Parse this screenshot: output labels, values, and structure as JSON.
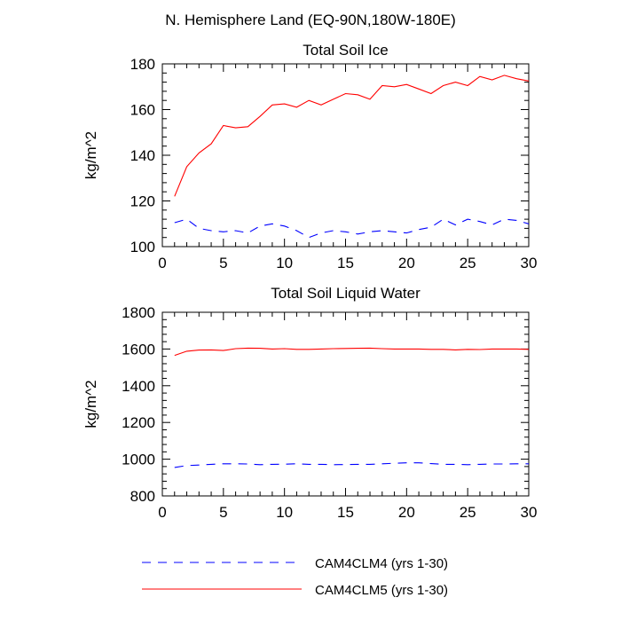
{
  "header": {
    "title": "N. Hemisphere Land (EQ-90N,180W-180E)"
  },
  "legend": [
    {
      "label": "CAM4CLM4 (yrs 1-30)",
      "color": "#0000ff",
      "dash": "dashed"
    },
    {
      "label": "CAM4CLM5 (yrs 1-30)",
      "color": "#ff0000",
      "dash": "solid"
    }
  ],
  "chart_data": [
    {
      "type": "line",
      "title": "Total Soil Ice",
      "xlabel": "",
      "ylabel": "kg/m^2",
      "xlim": [
        0,
        30
      ],
      "ylim": [
        100,
        180
      ],
      "xticks": [
        0,
        5,
        10,
        15,
        20,
        25,
        30
      ],
      "yticks": [
        100,
        120,
        140,
        160,
        180
      ],
      "grid": false,
      "x": [
        1,
        2,
        3,
        4,
        5,
        6,
        7,
        8,
        9,
        10,
        11,
        12,
        13,
        14,
        15,
        16,
        17,
        18,
        19,
        20,
        21,
        22,
        23,
        24,
        25,
        26,
        27,
        28,
        29,
        30
      ],
      "series": [
        {
          "name": "CAM4CLM4 (yrs 1-30)",
          "color": "#0000ff",
          "dash": "dashed",
          "values": [
            110.5,
            112,
            108,
            107,
            106.5,
            107,
            106,
            109,
            110,
            109,
            107,
            104,
            106,
            107,
            106.5,
            105.5,
            106.5,
            107,
            106.5,
            106,
            107.5,
            108.5,
            112,
            109.5,
            112,
            111,
            109.5,
            112,
            111.5,
            110
          ]
        },
        {
          "name": "CAM4CLM5 (yrs 1-30)",
          "color": "#ff0000",
          "dash": "solid",
          "values": [
            122,
            135,
            141,
            145,
            153,
            152,
            152.5,
            157,
            162,
            162.5,
            161,
            164,
            162,
            164.5,
            167,
            166.5,
            164.5,
            170.5,
            170,
            171,
            169,
            167,
            170.5,
            172,
            170.5,
            174.5,
            173,
            175,
            173.5,
            172.5
          ]
        }
      ]
    },
    {
      "type": "line",
      "title": "Total Soil Liquid Water",
      "xlabel": "",
      "ylabel": "kg/m^2",
      "xlim": [
        0,
        30
      ],
      "ylim": [
        800,
        1800
      ],
      "xticks": [
        0,
        5,
        10,
        15,
        20,
        25,
        30
      ],
      "yticks": [
        800,
        1000,
        1200,
        1400,
        1600,
        1800
      ],
      "grid": false,
      "x": [
        1,
        2,
        3,
        4,
        5,
        6,
        7,
        8,
        9,
        10,
        11,
        12,
        13,
        14,
        15,
        16,
        17,
        18,
        19,
        20,
        21,
        22,
        23,
        24,
        25,
        26,
        27,
        28,
        29,
        30
      ],
      "series": [
        {
          "name": "CAM4CLM4 (yrs 1-30)",
          "color": "#0000ff",
          "dash": "dashed",
          "values": [
            955,
            965,
            968,
            972,
            975,
            975,
            974,
            970,
            972,
            973,
            975,
            972,
            972,
            970,
            971,
            972,
            972,
            975,
            978,
            980,
            980,
            976,
            972,
            972,
            970,
            972,
            974,
            974,
            975,
            975
          ]
        },
        {
          "name": "CAM4CLM5 (yrs 1-30)",
          "color": "#ff0000",
          "dash": "solid",
          "values": [
            1565,
            1588,
            1594,
            1595,
            1592,
            1602,
            1605,
            1604,
            1600,
            1602,
            1598,
            1598,
            1600,
            1602,
            1603,
            1604,
            1605,
            1602,
            1600,
            1600,
            1600,
            1598,
            1598,
            1595,
            1598,
            1597,
            1600,
            1600,
            1600,
            1598
          ]
        }
      ]
    }
  ]
}
